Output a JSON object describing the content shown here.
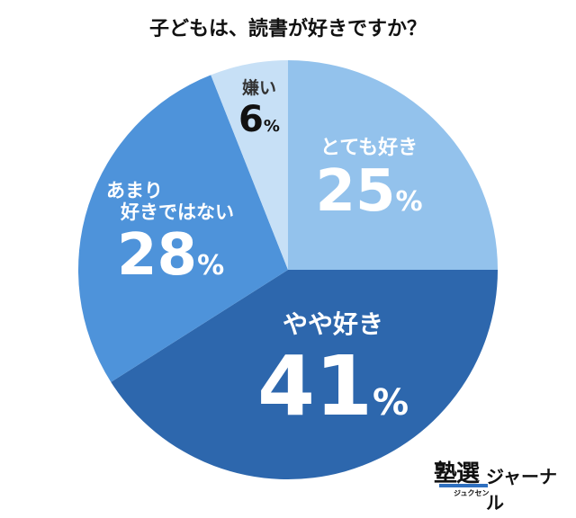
{
  "chart_data": {
    "type": "pie",
    "title": "子どもは、読書が好きですか？",
    "start": "top",
    "direction": "clockwise",
    "slices": [
      {
        "label": "とても好き",
        "value": 25,
        "color": "#93c2ec",
        "text_color": "#ffffff"
      },
      {
        "label": "やや好き",
        "value": 41,
        "color": "#2d67ad",
        "text_color": "#ffffff"
      },
      {
        "label": "あまり好きではない",
        "label_lines": [
          "あまり",
          "好きではない"
        ],
        "value": 28,
        "color": "#4e93da",
        "text_color": "#ffffff"
      },
      {
        "label": "嫌い",
        "value": 6,
        "color": "#c7e0f6",
        "text_color": "#222222"
      }
    ],
    "unit": "%"
  },
  "logo": {
    "main": "塾選",
    "sub": "ジュクセン",
    "suffix": "ジャーナル"
  }
}
